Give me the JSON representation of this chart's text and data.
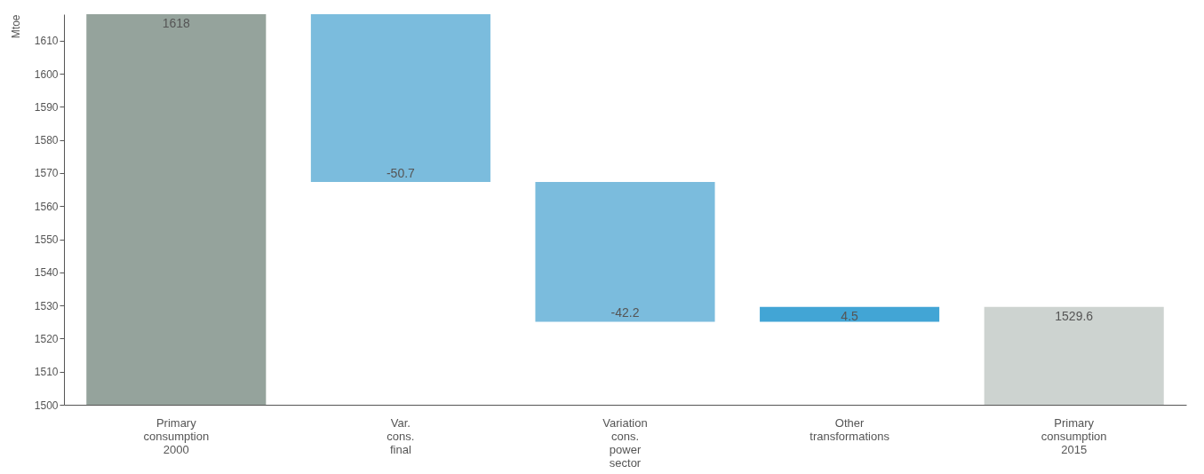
{
  "chart_data": {
    "type": "bar",
    "ylabel": "Mtoe",
    "categories": [
      "Primary consumption 2000",
      "Var. cons. final",
      "Variation cons. power sector",
      "Other transformations",
      "Primary consumption 2015"
    ],
    "values": [
      1618,
      -50.7,
      -42.2,
      4.5,
      1529.6
    ],
    "base": [
      0,
      1618,
      1567.3,
      1525.1,
      0
    ],
    "colors": [
      "#95a39c",
      "#7bbcdd",
      "#7bbcdd",
      "#42a5d5",
      "#cdd3d0"
    ],
    "ylim": [
      1500,
      1618
    ],
    "yticks": [
      1500,
      1510,
      1520,
      1530,
      1540,
      1550,
      1560,
      1570,
      1580,
      1590,
      1600,
      1610
    ],
    "data_labels": true,
    "grid": false
  }
}
